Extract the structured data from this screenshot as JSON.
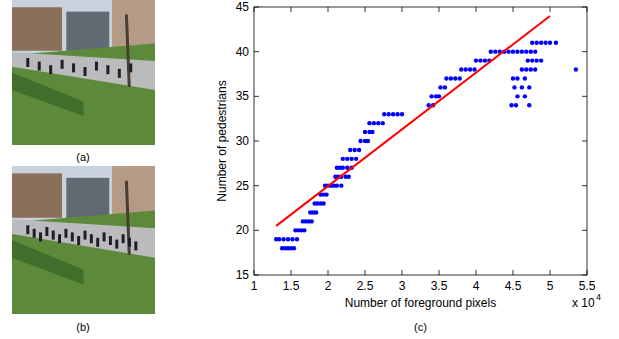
{
  "figure": {
    "panel_labels": [
      "(a)",
      "(b)",
      "(c)"
    ]
  },
  "chart_data": {
    "type": "scatter",
    "x_label": "Number of foreground pixels",
    "y_label": "Number of pedestrians",
    "annotations": [
      {
        "text": "x 10",
        "superscript": "4"
      }
    ],
    "xlim": [
      1,
      5.5
    ],
    "xticks": [
      1,
      1.5,
      2,
      2.5,
      3,
      3.5,
      4,
      4.5,
      5,
      5.5
    ],
    "ylim": [
      15,
      45
    ],
    "yticks": [
      15,
      20,
      25,
      30,
      35,
      40,
      45
    ],
    "grid": false,
    "series": [
      {
        "type": "scatter",
        "color": "#0000ff",
        "marker": "circle",
        "x": [
          1.38,
          1.42,
          1.46,
          1.5,
          1.54,
          1.3,
          1.34,
          1.4,
          1.46,
          1.52,
          1.58,
          1.56,
          1.6,
          1.64,
          1.68,
          1.66,
          1.7,
          1.74,
          1.78,
          1.76,
          1.8,
          1.84,
          1.82,
          1.86,
          1.9,
          1.94,
          1.9,
          1.94,
          1.98,
          1.96,
          2.0,
          2.04,
          2.08,
          2.12,
          2.18,
          2.1,
          2.14,
          2.18,
          2.24,
          2.28,
          2.12,
          2.16,
          2.2,
          2.26,
          2.32,
          2.2,
          2.26,
          2.32,
          2.38,
          2.3,
          2.36,
          2.42,
          2.44,
          2.5,
          2.54,
          2.5,
          2.56,
          2.6,
          2.56,
          2.62,
          2.68,
          2.74,
          2.76,
          2.82,
          2.88,
          2.94,
          3.0,
          3.36,
          3.42,
          3.4,
          3.46,
          3.5,
          3.52,
          3.58,
          3.6,
          3.66,
          3.72,
          3.78,
          3.8,
          3.86,
          3.92,
          3.98,
          4.0,
          4.06,
          4.12,
          4.18,
          4.2,
          4.26,
          4.32,
          4.38,
          4.44,
          4.5,
          4.56,
          4.62,
          4.68,
          4.74,
          4.8,
          4.76,
          4.82,
          4.88,
          4.94,
          5.0,
          5.08,
          4.7,
          4.76,
          4.82,
          4.88,
          4.62,
          4.68,
          4.74,
          4.8,
          5.35,
          4.5,
          4.56,
          4.66,
          4.52,
          4.62,
          4.72,
          4.56,
          4.66,
          4.48,
          4.54,
          4.72
        ],
        "values": [
          18,
          18,
          18,
          18,
          18,
          19,
          19,
          19,
          19,
          19,
          19,
          20,
          20,
          20,
          20,
          21,
          21,
          21,
          21,
          22,
          22,
          22,
          23,
          23,
          23,
          23,
          24,
          24,
          24,
          25,
          25,
          25,
          25,
          25,
          25,
          26,
          26,
          26,
          26,
          26,
          27,
          27,
          27,
          27,
          27,
          28,
          28,
          28,
          28,
          29,
          29,
          29,
          30,
          30,
          30,
          31,
          31,
          31,
          32,
          32,
          32,
          32,
          33,
          33,
          33,
          33,
          33,
          34,
          34,
          35,
          35,
          35,
          36,
          36,
          37,
          37,
          37,
          37,
          38,
          38,
          38,
          38,
          39,
          39,
          39,
          39,
          40,
          40,
          40,
          40,
          40,
          40,
          40,
          40,
          40,
          40,
          40,
          41,
          41,
          41,
          41,
          41,
          41,
          39,
          39,
          39,
          39,
          38,
          38,
          38,
          38,
          38,
          37,
          37,
          37,
          36,
          36,
          36,
          35,
          35,
          34,
          34,
          34
        ]
      },
      {
        "type": "line",
        "color": "#ff0000",
        "line_style": "solid",
        "x": [
          1.3,
          5.0
        ],
        "values": [
          20.5,
          44
        ]
      }
    ]
  }
}
